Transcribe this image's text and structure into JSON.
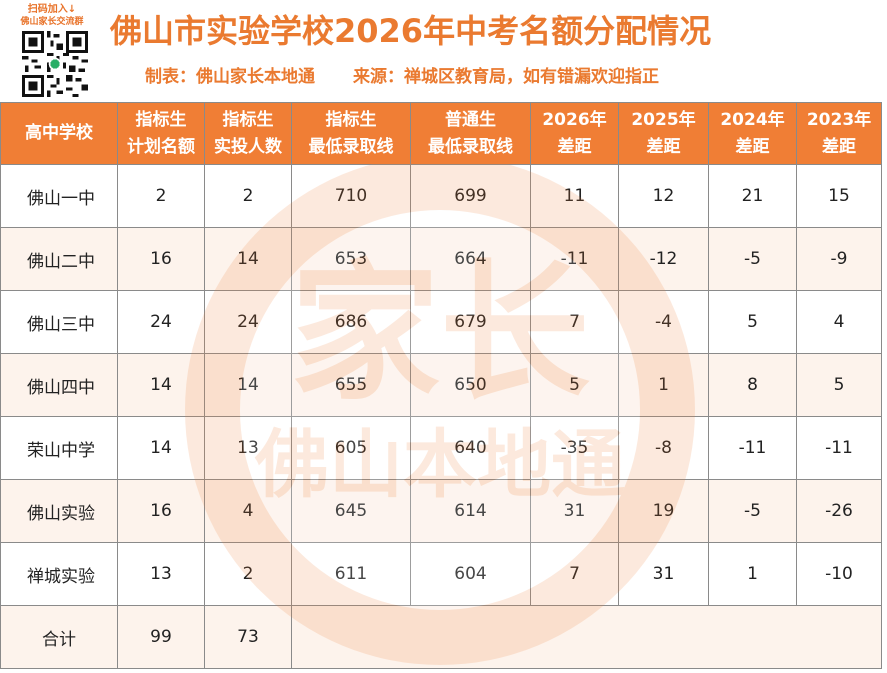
{
  "header": {
    "qr_caption_1": "扫码加入↓",
    "qr_caption_2": "佛山家长交流群",
    "title": "佛山市实验学校2026年中考名额分配情况",
    "maker": "制表：佛山家长本地通",
    "source": "来源：禅城区教育局，如有错漏欢迎指正"
  },
  "watermark": {
    "text_large": "家长",
    "text_small": "佛山本地通"
  },
  "table": {
    "headers": [
      [
        "高中学校"
      ],
      [
        "指标生",
        "计划名额"
      ],
      [
        "指标生",
        "实投人数"
      ],
      [
        "指标生",
        "最低录取线"
      ],
      [
        "普通生",
        "最低录取线"
      ],
      [
        "2026年",
        "差距"
      ],
      [
        "2025年",
        "差距"
      ],
      [
        "2024年",
        "差距"
      ],
      [
        "2023年",
        "差距"
      ]
    ],
    "rows": [
      [
        "佛山一中",
        "2",
        "2",
        "710",
        "699",
        "11",
        "12",
        "21",
        "15"
      ],
      [
        "佛山二中",
        "16",
        "14",
        "653",
        "664",
        "-11",
        "-12",
        "-5",
        "-9"
      ],
      [
        "佛山三中",
        "24",
        "24",
        "686",
        "679",
        "7",
        "-4",
        "5",
        "4"
      ],
      [
        "佛山四中",
        "14",
        "14",
        "655",
        "650",
        "5",
        "1",
        "8",
        "5"
      ],
      [
        "荣山中学",
        "14",
        "13",
        "605",
        "640",
        "-35",
        "-8",
        "-11",
        "-11"
      ],
      [
        "佛山实验",
        "16",
        "4",
        "645",
        "614",
        "31",
        "19",
        "-5",
        "-26"
      ],
      [
        "禅城实验",
        "13",
        "2",
        "611",
        "604",
        "7",
        "31",
        "1",
        "-10"
      ]
    ],
    "total": [
      "合计",
      "99",
      "73"
    ]
  },
  "colors": {
    "accent": "#f07e35",
    "title": "#ea7a30",
    "row_tint": "#fdf3ec"
  }
}
